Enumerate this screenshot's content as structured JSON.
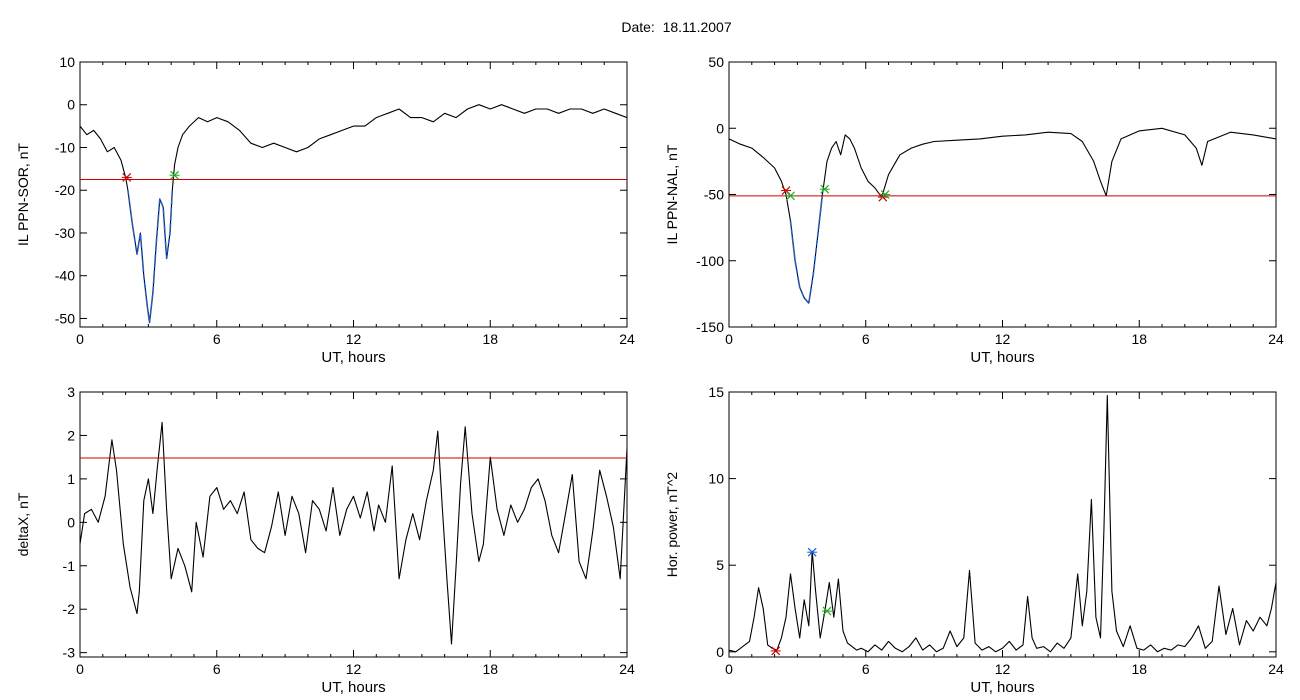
{
  "title": "Date:  18.11.2007",
  "colors": {
    "line": "#000000",
    "threshold": "#cc0000",
    "highlight": "#1f5fd6",
    "marker_red": "#cc0000",
    "marker_green": "#22aa22",
    "marker_blue": "#1f5fd6"
  },
  "chart_data": [
    {
      "id": "il-ppn-sor",
      "type": "line",
      "xlabel": "UT, hours",
      "ylabel": "IL PPN-SOR, nT",
      "xlim": [
        0,
        24
      ],
      "ylim": [
        -52,
        10
      ],
      "xticks": [
        0,
        6,
        12,
        18,
        24
      ],
      "yticks": [
        -50,
        -40,
        -30,
        -20,
        -10,
        0,
        10
      ],
      "threshold": -17.5,
      "highlight_range": [
        2.05,
        4.1
      ],
      "markers": [
        {
          "x": 2.05,
          "y": -17.0,
          "color": "red"
        },
        {
          "x": 4.15,
          "y": -16.5,
          "color": "green"
        }
      ],
      "x": [
        0,
        0.3,
        0.6,
        0.9,
        1.2,
        1.5,
        1.8,
        2.0,
        2.1,
        2.3,
        2.5,
        2.65,
        2.8,
        2.95,
        3.05,
        3.2,
        3.35,
        3.5,
        3.65,
        3.8,
        3.95,
        4.05,
        4.15,
        4.3,
        4.5,
        4.8,
        5.2,
        5.6,
        6.0,
        6.5,
        7.0,
        7.5,
        8.0,
        8.5,
        9.0,
        9.5,
        10.0,
        10.5,
        11.0,
        11.5,
        12.0,
        12.5,
        13.0,
        13.5,
        14.0,
        14.5,
        15.0,
        15.5,
        16.0,
        16.5,
        17.0,
        17.5,
        18.0,
        18.5,
        19.0,
        19.5,
        20.0,
        20.5,
        21.0,
        21.5,
        22.0,
        22.5,
        23.0,
        23.5,
        24.0
      ],
      "y": [
        -5,
        -7,
        -6,
        -8,
        -11,
        -10,
        -13,
        -17,
        -20,
        -28,
        -35,
        -30,
        -40,
        -47,
        -51,
        -44,
        -32,
        -22,
        -24,
        -36,
        -30,
        -20,
        -14,
        -10,
        -7,
        -5,
        -3,
        -4,
        -3,
        -4,
        -6,
        -9,
        -10,
        -9,
        -10,
        -11,
        -10,
        -8,
        -7,
        -6,
        -5,
        -5,
        -3,
        -2,
        -1,
        -3,
        -3,
        -4,
        -2,
        -3,
        -1,
        0,
        -1,
        0,
        -1,
        -2,
        -1,
        -1,
        -2,
        -1,
        -1,
        -2,
        -1,
        -2,
        -3
      ]
    },
    {
      "id": "il-ppn-nal",
      "type": "line",
      "xlabel": "UT, hours",
      "ylabel": "IL PPN-NAL, nT",
      "xlim": [
        0,
        24
      ],
      "ylim": [
        -150,
        50
      ],
      "xticks": [
        0,
        6,
        12,
        18,
        24
      ],
      "yticks": [
        -150,
        -100,
        -50,
        0,
        50
      ],
      "threshold": -51,
      "highlight_range": [
        2.7,
        4.2
      ],
      "markers": [
        {
          "x": 2.5,
          "y": -47,
          "color": "red"
        },
        {
          "x": 2.7,
          "y": -51,
          "color": "green"
        },
        {
          "x": 4.2,
          "y": -46,
          "color": "green"
        },
        {
          "x": 6.75,
          "y": -52,
          "color": "red"
        },
        {
          "x": 6.85,
          "y": -50,
          "color": "green"
        }
      ],
      "x": [
        0,
        0.5,
        1.0,
        1.5,
        2.0,
        2.3,
        2.5,
        2.7,
        2.9,
        3.1,
        3.3,
        3.5,
        3.7,
        3.9,
        4.1,
        4.3,
        4.5,
        4.7,
        4.9,
        5.1,
        5.3,
        5.5,
        5.8,
        6.1,
        6.4,
        6.7,
        7.0,
        7.5,
        8.0,
        8.5,
        9.0,
        10.0,
        11.0,
        12.0,
        13.0,
        14.0,
        15.0,
        15.5,
        16.0,
        16.3,
        16.55,
        16.8,
        17.2,
        18.0,
        19.0,
        20.0,
        20.5,
        20.75,
        21.0,
        22.0,
        23.0,
        24.0
      ],
      "y": [
        -8,
        -12,
        -15,
        -22,
        -30,
        -40,
        -50,
        -70,
        -100,
        -120,
        -128,
        -132,
        -110,
        -80,
        -50,
        -25,
        -15,
        -10,
        -20,
        -5,
        -8,
        -15,
        -30,
        -40,
        -45,
        -52,
        -35,
        -20,
        -15,
        -12,
        -10,
        -9,
        -8,
        -6,
        -5,
        -3,
        -4,
        -10,
        -25,
        -40,
        -51,
        -25,
        -8,
        -2,
        0,
        -5,
        -15,
        -28,
        -10,
        -3,
        -5,
        -8
      ]
    },
    {
      "id": "deltax",
      "type": "line",
      "xlabel": "UT, hours",
      "ylabel": "deltaX, nT",
      "xlim": [
        0,
        24
      ],
      "ylim": [
        -3.1,
        3
      ],
      "xticks": [
        0,
        6,
        12,
        18,
        24
      ],
      "yticks": [
        -3,
        -2,
        -1,
        0,
        1,
        2,
        3
      ],
      "threshold": 1.48,
      "x": [
        0,
        0.2,
        0.5,
        0.8,
        1.1,
        1.4,
        1.6,
        1.9,
        2.2,
        2.5,
        2.6,
        2.8,
        3.0,
        3.2,
        3.4,
        3.6,
        3.8,
        4.0,
        4.3,
        4.6,
        4.9,
        5.1,
        5.4,
        5.7,
        6.0,
        6.3,
        6.6,
        6.9,
        7.2,
        7.5,
        7.8,
        8.1,
        8.4,
        8.7,
        9.0,
        9.3,
        9.6,
        9.9,
        10.2,
        10.5,
        10.8,
        11.1,
        11.4,
        11.7,
        12.0,
        12.3,
        12.6,
        12.9,
        13.1,
        13.4,
        13.7,
        14.0,
        14.3,
        14.6,
        14.9,
        15.2,
        15.5,
        15.7,
        15.9,
        16.1,
        16.3,
        16.5,
        16.7,
        16.9,
        17.2,
        17.5,
        17.7,
        18.0,
        18.3,
        18.6,
        18.9,
        19.2,
        19.5,
        19.8,
        20.1,
        20.4,
        20.7,
        21.0,
        21.3,
        21.6,
        21.9,
        22.2,
        22.5,
        22.8,
        23.1,
        23.4,
        23.7,
        24.0
      ],
      "y": [
        -0.5,
        0.2,
        0.3,
        0.0,
        0.6,
        1.9,
        1.2,
        -0.5,
        -1.5,
        -2.1,
        -1.6,
        0.5,
        1.0,
        0.2,
        1.3,
        2.3,
        0.3,
        -1.3,
        -0.6,
        -1.0,
        -1.6,
        0.0,
        -0.8,
        0.6,
        0.8,
        0.3,
        0.5,
        0.2,
        0.7,
        -0.4,
        -0.6,
        -0.7,
        -0.1,
        0.7,
        -0.3,
        0.6,
        0.2,
        -0.7,
        0.5,
        0.3,
        -0.2,
        0.8,
        -0.3,
        0.3,
        0.6,
        0.1,
        0.7,
        -0.2,
        0.4,
        0.0,
        1.3,
        -1.3,
        -0.4,
        0.2,
        -0.4,
        0.5,
        1.2,
        2.1,
        0.3,
        -1.3,
        -2.8,
        -1.0,
        0.9,
        2.2,
        0.2,
        -0.9,
        -0.5,
        1.5,
        0.3,
        -0.3,
        0.4,
        0.0,
        0.3,
        0.8,
        1.0,
        0.5,
        -0.3,
        -0.7,
        0.2,
        1.1,
        -0.9,
        -1.3,
        -0.2,
        1.2,
        0.6,
        -0.1,
        -1.3,
        1.7
      ]
    },
    {
      "id": "hor-power",
      "type": "line",
      "xlabel": "UT, hours",
      "ylabel": "Hor. power, nT^2",
      "xlim": [
        0,
        24
      ],
      "ylim": [
        -0.3,
        15
      ],
      "xticks": [
        0,
        6,
        12,
        18,
        24
      ],
      "yticks": [
        0,
        5,
        10,
        15
      ],
      "markers": [
        {
          "x": 2.05,
          "y": 0.05,
          "color": "red"
        },
        {
          "x": 3.65,
          "y": 5.75,
          "color": "blue"
        },
        {
          "x": 4.3,
          "y": 2.35,
          "color": "green"
        }
      ],
      "x": [
        0,
        0.3,
        0.6,
        0.9,
        1.1,
        1.3,
        1.5,
        1.7,
        1.9,
        2.1,
        2.3,
        2.5,
        2.7,
        2.9,
        3.1,
        3.3,
        3.5,
        3.65,
        3.8,
        4.0,
        4.2,
        4.4,
        4.6,
        4.8,
        5.0,
        5.2,
        5.4,
        5.6,
        5.8,
        6.1,
        6.4,
        6.7,
        7.0,
        7.3,
        7.6,
        7.9,
        8.2,
        8.5,
        8.8,
        9.1,
        9.4,
        9.7,
        10.0,
        10.3,
        10.55,
        10.8,
        11.1,
        11.4,
        11.7,
        12.0,
        12.3,
        12.6,
        12.9,
        13.1,
        13.3,
        13.5,
        13.8,
        14.1,
        14.4,
        14.7,
        15.0,
        15.3,
        15.5,
        15.7,
        15.9,
        16.1,
        16.3,
        16.45,
        16.6,
        16.8,
        17.0,
        17.3,
        17.6,
        17.9,
        18.2,
        18.5,
        18.8,
        19.1,
        19.4,
        19.7,
        20.0,
        20.3,
        20.6,
        20.9,
        21.2,
        21.5,
        21.8,
        22.1,
        22.4,
        22.7,
        23.0,
        23.3,
        23.6,
        23.8,
        24.0
      ],
      "y": [
        0.1,
        0.0,
        0.3,
        0.6,
        2.0,
        3.7,
        2.5,
        0.4,
        0.2,
        0.1,
        0.8,
        2.0,
        4.5,
        2.5,
        0.8,
        3.0,
        1.5,
        5.8,
        3.5,
        0.8,
        2.3,
        4.0,
        2.0,
        4.2,
        1.2,
        0.5,
        0.3,
        0.1,
        0.2,
        0.0,
        0.4,
        0.1,
        0.6,
        0.2,
        0.0,
        0.3,
        0.8,
        0.1,
        0.4,
        0.0,
        0.2,
        1.2,
        0.3,
        0.8,
        4.7,
        0.5,
        0.1,
        0.3,
        0.0,
        0.2,
        0.6,
        0.1,
        0.4,
        3.2,
        0.8,
        0.2,
        0.3,
        0.0,
        0.5,
        0.2,
        0.8,
        4.5,
        1.5,
        3.5,
        8.8,
        2.0,
        0.8,
        7.0,
        14.8,
        3.5,
        1.2,
        0.3,
        1.5,
        0.2,
        0.1,
        0.4,
        0.0,
        0.2,
        0.1,
        0.4,
        0.3,
        0.8,
        1.5,
        0.2,
        0.6,
        3.8,
        1.0,
        2.5,
        0.4,
        1.8,
        1.2,
        2.0,
        1.5,
        2.5,
        4.0
      ]
    }
  ]
}
